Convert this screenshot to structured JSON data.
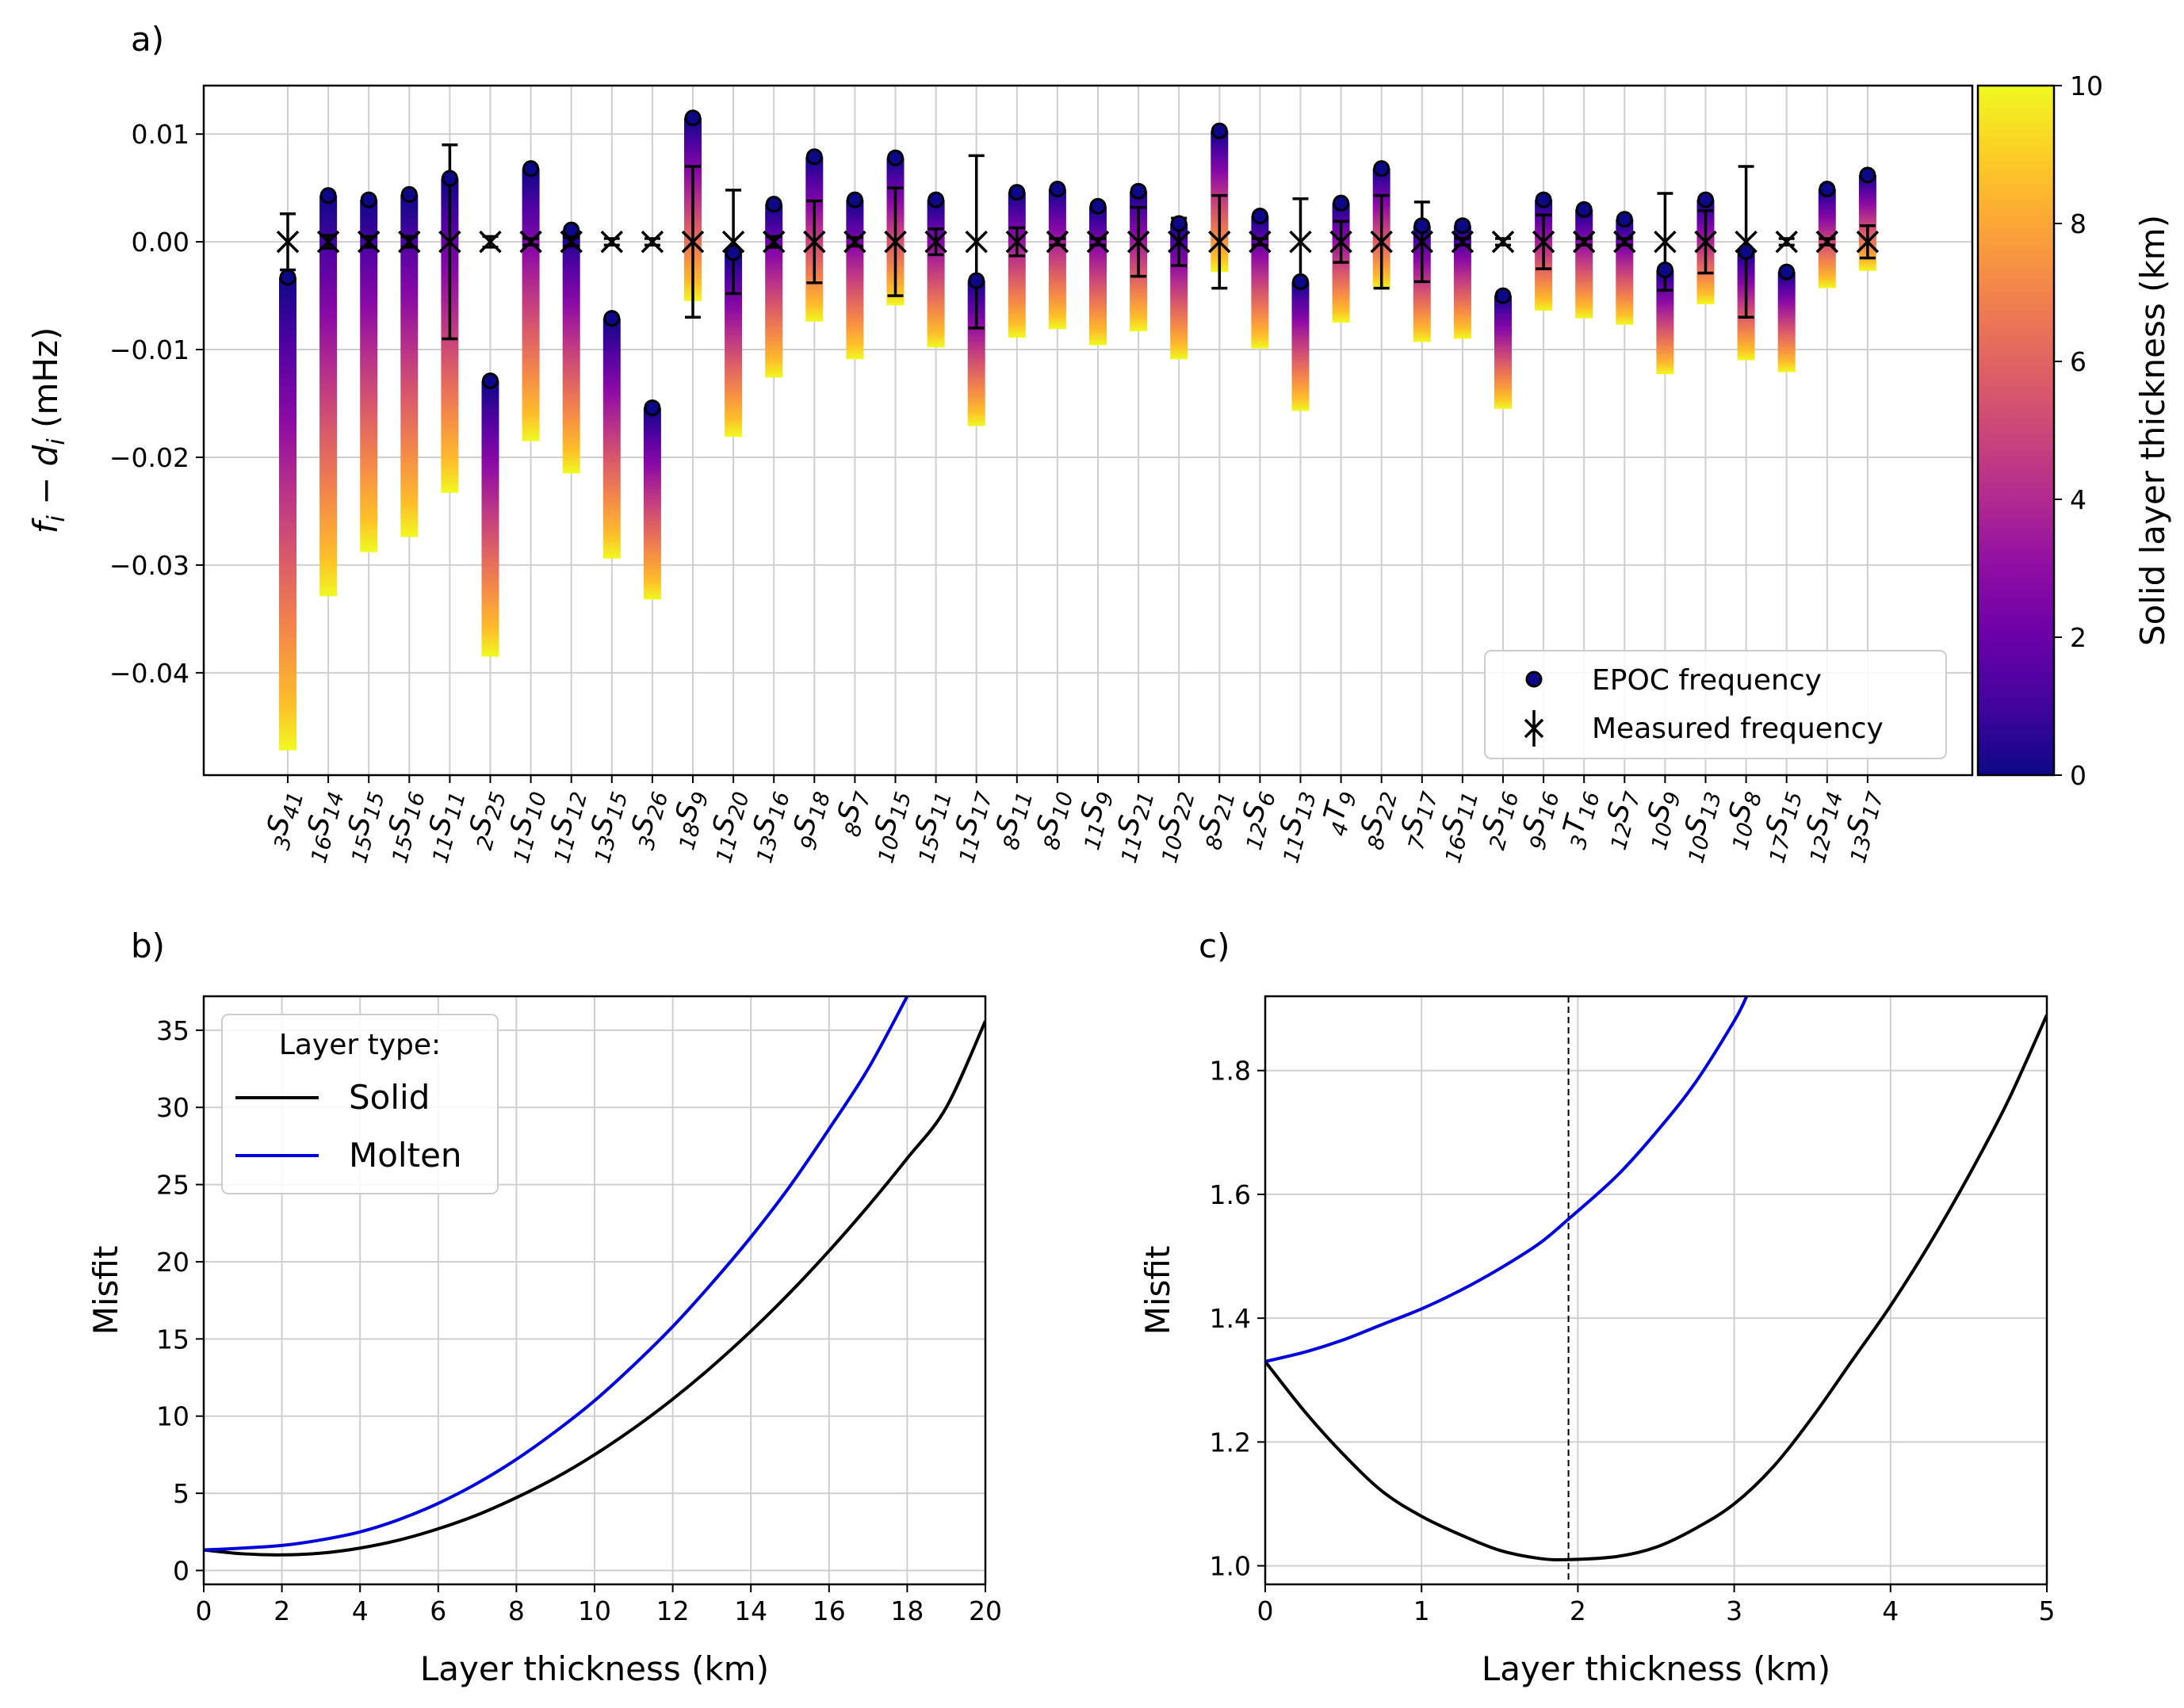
{
  "panel_labels": [
    "a)",
    "b)",
    "c)"
  ],
  "chart_data": [
    {
      "type": "errorbar",
      "panel": "a)",
      "ylabel_main": "f",
      "ylabel_sub1": "i",
      "ylabel_minus": " − ",
      "ylabel_d": "d",
      "ylabel_sub2": "i",
      "ylabel_unit": " (mHz)",
      "ylim": [
        -0.0495,
        0.0145
      ],
      "yticks": [
        0.01,
        0.0,
        -0.01,
        -0.02,
        -0.03,
        -0.04
      ],
      "ytick_labels": [
        "0.01",
        "0.00",
        "−0.01",
        "−0.02",
        "−0.03",
        "−0.04"
      ],
      "modes": [
        {
          "pre": "3",
          "letter": "S",
          "post": "41",
          "epoc": -0.0033,
          "tail": -0.0472,
          "err": 0.0026
        },
        {
          "pre": "16",
          "letter": "S",
          "post": "14",
          "epoc": 0.0043,
          "tail": -0.0329,
          "err": 0.0006
        },
        {
          "pre": "15",
          "letter": "S",
          "post": "15",
          "epoc": 0.0039,
          "tail": -0.0288,
          "err": 0.0005
        },
        {
          "pre": "15",
          "letter": "S",
          "post": "16",
          "epoc": 0.0044,
          "tail": -0.0274,
          "err": 0.0005
        },
        {
          "pre": "11",
          "letter": "S",
          "post": "11",
          "epoc": 0.0059,
          "tail": -0.0233,
          "err": 0.009
        },
        {
          "pre": "2",
          "letter": "S",
          "post": "25",
          "epoc": -0.0129,
          "tail": -0.0385,
          "err": 0.0005
        },
        {
          "pre": "11",
          "letter": "S",
          "post": "10",
          "epoc": 0.0068,
          "tail": -0.0185,
          "err": 0.0003
        },
        {
          "pre": "11",
          "letter": "S",
          "post": "12",
          "epoc": 0.0011,
          "tail": -0.0215,
          "err": 0.0004
        },
        {
          "pre": "13",
          "letter": "S",
          "post": "15",
          "epoc": -0.0071,
          "tail": -0.0294,
          "err": 0.0003
        },
        {
          "pre": "3",
          "letter": "S",
          "post": "26",
          "epoc": -0.0154,
          "tail": -0.0332,
          "err": 0.0003
        },
        {
          "pre": "18",
          "letter": "S",
          "post": "9",
          "epoc": 0.0115,
          "tail": -0.0055,
          "err": 0.007
        },
        {
          "pre": "11",
          "letter": "S",
          "post": "20",
          "epoc": -0.001,
          "tail": -0.0181,
          "err": 0.0048
        },
        {
          "pre": "13",
          "letter": "S",
          "post": "16",
          "epoc": 0.0035,
          "tail": -0.0126,
          "err": 0.0005
        },
        {
          "pre": "9",
          "letter": "S",
          "post": "18",
          "epoc": 0.0079,
          "tail": -0.0074,
          "err": 0.0038
        },
        {
          "pre": "8",
          "letter": "S",
          "post": "7",
          "epoc": 0.0039,
          "tail": -0.0109,
          "err": 0.0004
        },
        {
          "pre": "10",
          "letter": "S",
          "post": "15",
          "epoc": 0.0078,
          "tail": -0.0059,
          "err": 0.005
        },
        {
          "pre": "15",
          "letter": "S",
          "post": "11",
          "epoc": 0.0039,
          "tail": -0.0098,
          "err": 0.0012
        },
        {
          "pre": "11",
          "letter": "S",
          "post": "17",
          "epoc": -0.0036,
          "tail": -0.0171,
          "err": 0.008
        },
        {
          "pre": "8",
          "letter": "S",
          "post": "11",
          "epoc": 0.0046,
          "tail": -0.0089,
          "err": 0.0013
        },
        {
          "pre": "8",
          "letter": "S",
          "post": "10",
          "epoc": 0.0049,
          "tail": -0.0081,
          "err": 0.0003
        },
        {
          "pre": "11",
          "letter": "S",
          "post": "9",
          "epoc": 0.0033,
          "tail": -0.0096,
          "err": 0.0003
        },
        {
          "pre": "11",
          "letter": "S",
          "post": "21",
          "epoc": 0.0047,
          "tail": -0.0083,
          "err": 0.0032
        },
        {
          "pre": "10",
          "letter": "S",
          "post": "22",
          "epoc": 0.0017,
          "tail": -0.0109,
          "err": 0.0022
        },
        {
          "pre": "8",
          "letter": "S",
          "post": "21",
          "epoc": 0.0103,
          "tail": -0.0028,
          "err": 0.0043
        },
        {
          "pre": "12",
          "letter": "S",
          "post": "6",
          "epoc": 0.0024,
          "tail": -0.0099,
          "err": 0.0003
        },
        {
          "pre": "11",
          "letter": "S",
          "post": "13",
          "epoc": -0.0037,
          "tail": -0.0157,
          "err": 0.004
        },
        {
          "pre": "4",
          "letter": "T",
          "post": "9",
          "epoc": 0.0036,
          "tail": -0.0075,
          "err": 0.0019
        },
        {
          "pre": "8",
          "letter": "S",
          "post": "22",
          "epoc": 0.0068,
          "tail": -0.0044,
          "err": 0.0043
        },
        {
          "pre": "7",
          "letter": "S",
          "post": "17",
          "epoc": 0.0015,
          "tail": -0.0093,
          "err": 0.0037
        },
        {
          "pre": "16",
          "letter": "S",
          "post": "11",
          "epoc": 0.0015,
          "tail": -0.009,
          "err": 0.0003
        },
        {
          "pre": "2",
          "letter": "S",
          "post": "16",
          "epoc": -0.005,
          "tail": -0.0155,
          "err": 0.0003
        },
        {
          "pre": "9",
          "letter": "S",
          "post": "16",
          "epoc": 0.0039,
          "tail": -0.0064,
          "err": 0.0025
        },
        {
          "pre": "3",
          "letter": "T",
          "post": "16",
          "epoc": 0.003,
          "tail": -0.0071,
          "err": 0.0003
        },
        {
          "pre": "12",
          "letter": "S",
          "post": "7",
          "epoc": 0.0021,
          "tail": -0.0077,
          "err": 0.0003
        },
        {
          "pre": "10",
          "letter": "S",
          "post": "9",
          "epoc": -0.0026,
          "tail": -0.0123,
          "err": 0.0045
        },
        {
          "pre": "10",
          "letter": "S",
          "post": "13",
          "epoc": 0.0039,
          "tail": -0.0058,
          "err": 0.0029
        },
        {
          "pre": "10",
          "letter": "S",
          "post": "8",
          "epoc": -0.0009,
          "tail": -0.011,
          "err": 0.007
        },
        {
          "pre": "17",
          "letter": "S",
          "post": "15",
          "epoc": -0.0028,
          "tail": -0.0121,
          "err": 0.0003
        },
        {
          "pre": "12",
          "letter": "S",
          "post": "14",
          "epoc": 0.0049,
          "tail": -0.0043,
          "err": 0.0003
        },
        {
          "pre": "13",
          "letter": "S",
          "post": "17",
          "epoc": 0.0062,
          "tail": -0.0027,
          "err": 0.0015
        }
      ],
      "legend": {
        "epoc": "EPOC frequency",
        "measured": "Measured frequency",
        "position": "lower right"
      },
      "colorbar": {
        "label": "Solid layer thickness (km)",
        "range": [
          0,
          10
        ],
        "ticks": [
          "0",
          "2",
          "4",
          "6",
          "8",
          "10"
        ],
        "colormap": "plasma"
      }
    },
    {
      "type": "line",
      "panel": "b)",
      "xlabel": "Layer thickness (km)",
      "ylabel": "Misfit",
      "xlim": [
        0,
        20
      ],
      "ylim": [
        -0.9,
        37.2
      ],
      "xticks": [
        "0",
        "2",
        "4",
        "6",
        "8",
        "10",
        "12",
        "14",
        "16",
        "18",
        "20"
      ],
      "yticks": [
        "0",
        "5",
        "10",
        "15",
        "20",
        "25",
        "30",
        "35"
      ],
      "legend_title": "Layer type:",
      "series": [
        {
          "name": "Solid",
          "color": "#000000",
          "x": [
            0,
            1,
            2,
            3,
            4,
            5,
            6,
            7,
            8,
            9,
            10,
            11,
            12,
            13,
            14,
            15,
            16,
            17,
            18,
            19,
            20
          ],
          "y": [
            1.33,
            1.08,
            1.01,
            1.12,
            1.45,
            1.97,
            2.7,
            3.6,
            4.72,
            6.0,
            7.5,
            9.2,
            11.1,
            13.2,
            15.5,
            18.0,
            20.7,
            23.6,
            26.7,
            30.0,
            35.6
          ]
        },
        {
          "name": "Molten",
          "color": "#0000dd",
          "x": [
            0,
            1,
            2,
            3,
            4,
            5,
            6,
            7,
            8,
            9,
            10,
            11,
            12,
            13,
            14,
            15,
            16,
            17,
            18
          ],
          "y": [
            1.33,
            1.45,
            1.62,
            1.98,
            2.5,
            3.3,
            4.35,
            5.65,
            7.2,
            9.0,
            11.0,
            13.3,
            15.8,
            18.6,
            21.6,
            24.9,
            28.6,
            32.5,
            37.2
          ]
        }
      ]
    },
    {
      "type": "line",
      "panel": "c)",
      "xlabel": "Layer thickness (km)",
      "ylabel": "Misfit",
      "xlim": [
        0,
        5
      ],
      "ylim": [
        0.97,
        1.92
      ],
      "xticks": [
        "0",
        "1",
        "2",
        "3",
        "4",
        "5"
      ],
      "yticks": [
        "1.0",
        "1.2",
        "1.4",
        "1.6",
        "1.8"
      ],
      "vline_x": 1.94,
      "series": [
        {
          "name": "Solid",
          "color": "#000000",
          "x": [
            0,
            0.25,
            0.5,
            0.75,
            1.0,
            1.25,
            1.5,
            1.75,
            1.94,
            2.25,
            2.5,
            2.75,
            3.0,
            3.25,
            3.5,
            3.75,
            4.0,
            4.25,
            4.5,
            4.75,
            5.0
          ],
          "y": [
            1.33,
            1.25,
            1.18,
            1.12,
            1.08,
            1.05,
            1.025,
            1.012,
            1.01,
            1.015,
            1.03,
            1.06,
            1.1,
            1.16,
            1.24,
            1.33,
            1.42,
            1.52,
            1.63,
            1.75,
            1.89
          ]
        },
        {
          "name": "Molten",
          "color": "#0000dd",
          "x": [
            0,
            0.25,
            0.5,
            0.75,
            1.0,
            1.25,
            1.5,
            1.75,
            1.94,
            2.25,
            2.5,
            2.75,
            3.0,
            3.08
          ],
          "y": [
            1.33,
            1.345,
            1.365,
            1.39,
            1.415,
            1.445,
            1.48,
            1.52,
            1.56,
            1.63,
            1.7,
            1.78,
            1.88,
            1.92
          ]
        }
      ]
    }
  ]
}
